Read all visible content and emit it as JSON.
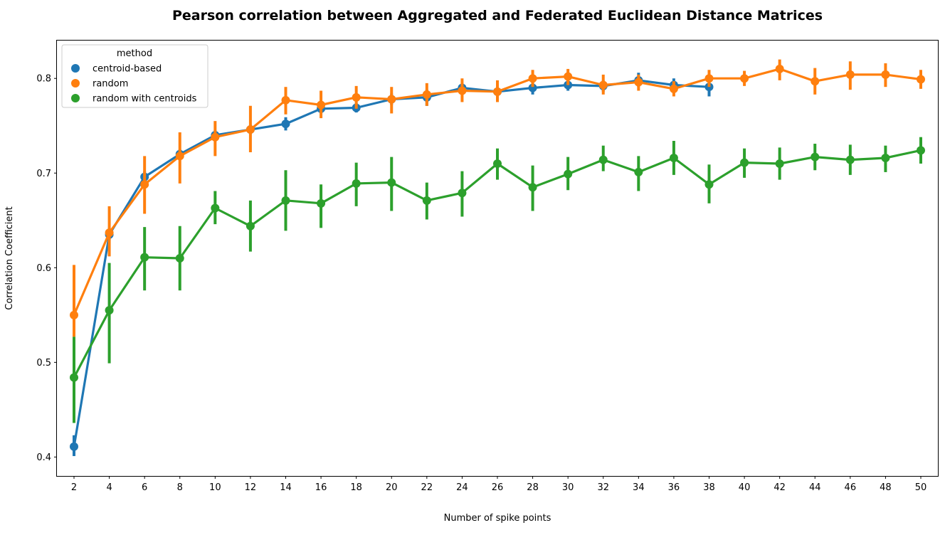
{
  "chart_data": {
    "type": "line",
    "title": "Pearson correlation between Aggregated and Federated Euclidean Distance Matrices",
    "xlabel": "Number of spike points",
    "ylabel": "Correlation Coefficient",
    "categories": [
      2,
      4,
      6,
      8,
      10,
      12,
      14,
      16,
      18,
      20,
      22,
      24,
      26,
      28,
      30,
      32,
      34,
      36,
      38,
      40,
      42,
      44,
      46,
      48,
      50
    ],
    "ylim": [
      0.38,
      0.84
    ],
    "yticks": [
      0.4,
      0.5,
      0.6,
      0.7,
      0.8
    ],
    "legend": {
      "title": "method",
      "placement": "top-left"
    },
    "series": [
      {
        "name": "centroid-based",
        "color": "#1f77b4",
        "values": [
          0.411,
          0.635,
          0.696,
          0.72,
          0.74,
          0.746,
          0.752,
          0.768,
          0.769,
          0.778,
          0.78,
          0.79,
          0.786,
          0.79,
          0.793,
          0.792,
          0.798,
          0.793,
          0.791,
          null,
          null,
          null,
          null,
          null,
          null
        ],
        "err_low": [
          0.401,
          0.629,
          0.69,
          0.714,
          0.735,
          0.741,
          0.745,
          0.763,
          0.764,
          0.772,
          0.771,
          0.785,
          0.78,
          0.783,
          0.787,
          0.786,
          0.791,
          0.785,
          0.781,
          null,
          null,
          null,
          null,
          null,
          null
        ],
        "err_high": [
          0.423,
          0.642,
          0.702,
          0.725,
          0.745,
          0.751,
          0.759,
          0.774,
          0.774,
          0.784,
          0.788,
          0.795,
          0.791,
          0.796,
          0.798,
          0.798,
          0.806,
          0.8,
          0.8,
          null,
          null,
          null,
          null,
          null,
          null
        ]
      },
      {
        "name": "random",
        "color": "#ff7f0e",
        "values": [
          0.55,
          0.637,
          0.688,
          0.718,
          0.738,
          0.746,
          0.777,
          0.772,
          0.78,
          0.778,
          0.783,
          0.787,
          0.786,
          0.8,
          0.802,
          0.793,
          0.796,
          0.789,
          0.8,
          0.8,
          0.81,
          0.797,
          0.804,
          0.804,
          0.799
        ],
        "err_low": [
          0.527,
          0.612,
          0.657,
          0.689,
          0.718,
          0.722,
          0.762,
          0.758,
          0.768,
          0.763,
          0.771,
          0.775,
          0.775,
          0.791,
          0.793,
          0.783,
          0.787,
          0.781,
          0.791,
          0.792,
          0.798,
          0.783,
          0.788,
          0.791,
          0.789
        ],
        "err_high": [
          0.603,
          0.665,
          0.718,
          0.743,
          0.755,
          0.771,
          0.791,
          0.787,
          0.792,
          0.791,
          0.795,
          0.8,
          0.798,
          0.809,
          0.81,
          0.804,
          0.804,
          0.797,
          0.809,
          0.808,
          0.82,
          0.811,
          0.818,
          0.816,
          0.809
        ]
      },
      {
        "name": "random with centroids",
        "color": "#2ca02c",
        "values": [
          0.484,
          0.555,
          0.611,
          0.61,
          0.663,
          0.644,
          0.671,
          0.668,
          0.689,
          0.69,
          0.671,
          0.679,
          0.71,
          0.685,
          0.699,
          0.714,
          0.701,
          0.716,
          0.688,
          0.711,
          0.71,
          0.717,
          0.714,
          0.716,
          0.724
        ],
        "err_low": [
          0.436,
          0.499,
          0.576,
          0.576,
          0.646,
          0.617,
          0.639,
          0.642,
          0.665,
          0.66,
          0.651,
          0.654,
          0.693,
          0.66,
          0.682,
          0.702,
          0.681,
          0.698,
          0.668,
          0.695,
          0.693,
          0.703,
          0.698,
          0.701,
          0.71
        ],
        "err_high": [
          0.527,
          0.605,
          0.643,
          0.644,
          0.681,
          0.671,
          0.703,
          0.688,
          0.711,
          0.717,
          0.69,
          0.702,
          0.726,
          0.708,
          0.717,
          0.729,
          0.718,
          0.734,
          0.709,
          0.726,
          0.727,
          0.731,
          0.73,
          0.729,
          0.738
        ]
      }
    ]
  }
}
